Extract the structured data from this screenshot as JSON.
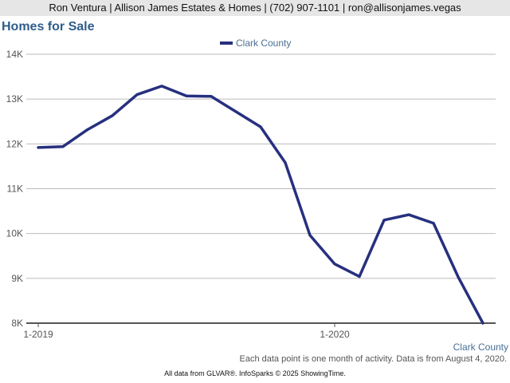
{
  "header": {
    "contact": "Ron Ventura | Allison James Estates & Homes | (702) 907-1101 | ron@allisonjames.vegas"
  },
  "page_title": "Homes for Sale",
  "footer": {
    "note": "Each data point is one month of activity. Data is from August 4, 2020.",
    "credit": "All data from GLVAR®. InfoSparks © 2025 ShowingTime."
  },
  "chart_data": {
    "type": "line",
    "title": "Homes for Sale",
    "x": [
      "2019-01",
      "2019-02",
      "2019-03",
      "2019-04",
      "2019-05",
      "2019-06",
      "2019-07",
      "2019-08",
      "2019-09",
      "2019-10",
      "2019-11",
      "2019-12",
      "2020-01",
      "2020-02",
      "2020-03",
      "2020-04",
      "2020-05",
      "2020-06",
      "2020-07"
    ],
    "series": [
      {
        "name": "Clark County",
        "color": "#27307f",
        "values": [
          11920,
          11940,
          12320,
          12630,
          13100,
          13290,
          13070,
          13060,
          12720,
          12380,
          11580,
          9960,
          9320,
          9040,
          10300,
          10420,
          10230,
          9030,
          8000
        ]
      }
    ],
    "ylim": [
      8000,
      14000
    ],
    "y_ticks": [
      8000,
      9000,
      10000,
      11000,
      12000,
      13000,
      14000
    ],
    "y_tick_labels": [
      "8K",
      "9K",
      "10K",
      "11K",
      "12K",
      "13K",
      "14K"
    ],
    "x_tick_labels": [
      {
        "index": 0,
        "label": "1-2019"
      },
      {
        "index": 12,
        "label": "1-2020"
      }
    ],
    "series_label": "Clark County",
    "legend_position": "top-center",
    "grid": true,
    "colors": {
      "line": "#27307f",
      "grid": "#bbbbbb",
      "axis": "#555555",
      "label": "#4a6f95"
    }
  }
}
